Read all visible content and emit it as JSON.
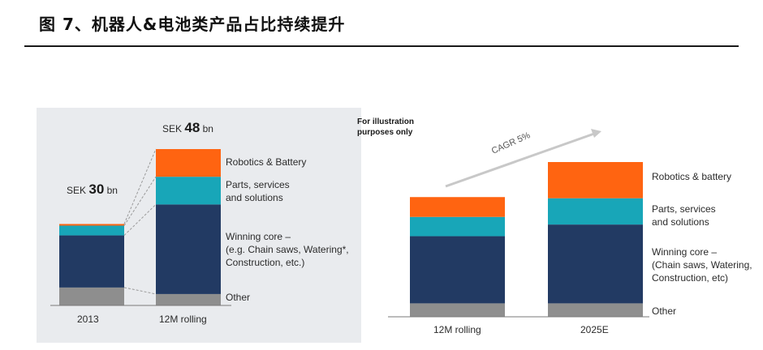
{
  "figure_title": "图 7、机器人&电池类产品占比持续提升",
  "colors": {
    "robotics": "#ff6411",
    "parts": "#18a6b8",
    "core": "#223a63",
    "other": "#8e8e8e",
    "connector": "#9a9a9a",
    "arrow": "#c8c8c8"
  },
  "chart_data": [
    {
      "type": "bar",
      "stacked": true,
      "categories": [
        "2013",
        "12M rolling"
      ],
      "totals": [
        {
          "prefix": "SEK ",
          "value": "30",
          "suffix": " bn"
        },
        {
          "prefix": "SEK ",
          "value": "48",
          "suffix": " bn"
        }
      ],
      "series": [
        {
          "name": "Other",
          "values": [
            5.5,
            3.5
          ]
        },
        {
          "name": "Winning core –\n(e.g. Chain saws, Watering*,\nConstruction, etc.)",
          "values": [
            16.0,
            27.5
          ]
        },
        {
          "name": "Parts, services\nand solutions",
          "values": [
            3.0,
            8.5
          ]
        },
        {
          "name": "Robotics & Battery",
          "values": [
            0.5,
            8.5
          ]
        }
      ],
      "ylim": [
        0,
        48
      ]
    },
    {
      "type": "bar",
      "stacked": true,
      "note": "For illustration\npurposes only",
      "annotation": "CAGR 5%",
      "categories": [
        "12M rolling",
        "2025E"
      ],
      "series": [
        {
          "name": "Other",
          "values": [
            2.3,
            2.3
          ]
        },
        {
          "name": "Winning core –\n(Chain saws, Watering,\nConstruction, etc)",
          "values": [
            11.5,
            13.5
          ]
        },
        {
          "name": "Parts, services\nand solutions",
          "values": [
            3.3,
            4.5
          ]
        },
        {
          "name": "Robotics & battery",
          "values": [
            3.4,
            6.2
          ]
        }
      ],
      "ylim": [
        0,
        26.5
      ]
    }
  ]
}
